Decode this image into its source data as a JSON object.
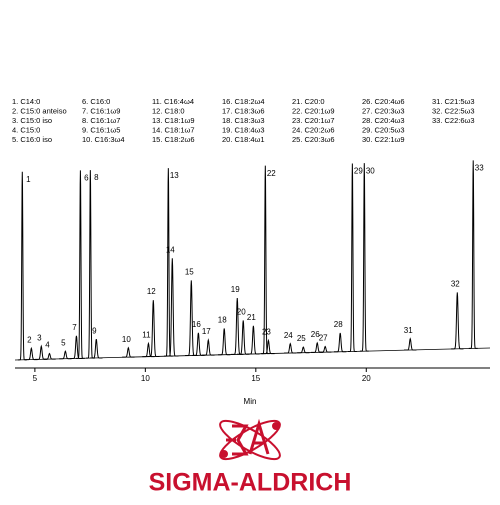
{
  "chart_data": {
    "type": "chromatogram",
    "x_label": "Min",
    "color": "#000000",
    "xlim": [
      4.1,
      25.6
    ],
    "xticks": [
      5,
      10,
      15,
      20
    ],
    "ylim": [
      0,
      100
    ],
    "categories": [
      "1",
      "2",
      "3",
      "4",
      "5",
      "6",
      "7",
      "8",
      "9",
      "10",
      "11",
      "12",
      "13",
      "14",
      "15",
      "16",
      "17",
      "18",
      "19",
      "20",
      "21",
      "22",
      "23",
      "24",
      "25",
      "26",
      "27",
      "28",
      "29",
      "30",
      "31",
      "32",
      "33"
    ],
    "x": [
      4.43,
      4.84,
      5.29,
      5.66,
      6.38,
      7.06,
      6.88,
      7.51,
      7.78,
      9.23,
      10.14,
      10.36,
      11.04,
      11.22,
      12.08,
      12.4,
      12.85,
      13.57,
      14.16,
      14.43,
      14.89,
      15.43,
      15.57,
      16.56,
      17.15,
      17.78,
      18.14,
      18.82,
      19.37,
      19.91,
      21.99,
      24.12,
      24.84
    ],
    "values": [
      100,
      6,
      7,
      3,
      4,
      100,
      12,
      100,
      10,
      5,
      7,
      30,
      100,
      52,
      40,
      12,
      8,
      14,
      30,
      18,
      15,
      100,
      7,
      5,
      3,
      5,
      3,
      10,
      100,
      100,
      6,
      30,
      100
    ],
    "legend": [
      "1. C14:0",
      "2. C15:0 anteiso",
      "3. C15:0 iso",
      "4. C15:0",
      "5. C16:0 iso",
      "6. C16:0",
      "7. C16:1ω9",
      "8. C16:1ω7",
      "9. C16:1ω5",
      "10. C16:3ω4",
      "11. C16:4ω4",
      "12. C18:0",
      "13. C18:1ω9",
      "14. C18:1ω7",
      "15. C18:2ω6",
      "16. C18:2ω4",
      "17. C18:3ω6",
      "18. C18:3ω3",
      "19. C18:4ω3",
      "20. C18:4ω1",
      "21. C20:0",
      "22. C20:1ω9",
      "23. C20:1ω7",
      "24. C20:2ω6",
      "25. C20:3ω6",
      "26. C20:4ω6",
      "27. C20:3ω3",
      "28. C20:4ω3",
      "29. C20:5ω3",
      "30. C22:1ω9",
      "31. C21:5ω3",
      "32. C22:5ω3",
      "33. C22:6ω3"
    ]
  },
  "logo": {
    "text": "SIGMA-ALDRICH"
  }
}
